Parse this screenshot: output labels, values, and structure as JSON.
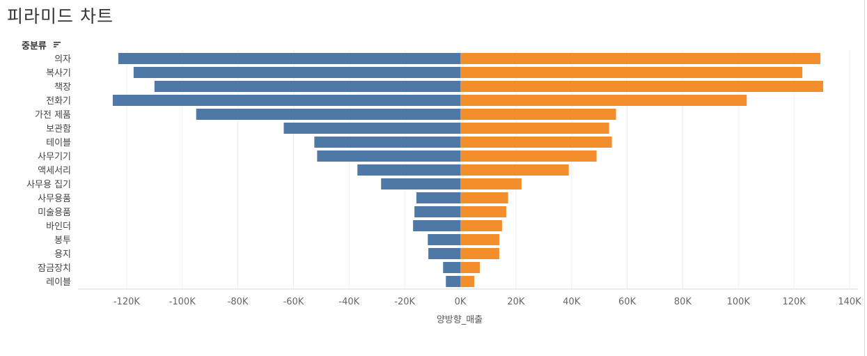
{
  "page_title": "피라미드 차트",
  "dimension_header": "중분류",
  "colors": {
    "left_series": "#4e79a7",
    "right_series": "#f28e2b",
    "gridline": "#efefef",
    "axis_text": "#666666"
  },
  "icons": {
    "sort": "sort-descending-icon"
  },
  "chart_data": {
    "type": "bar",
    "orientation": "horizontal",
    "layout": "pyramid",
    "categories": [
      "의자",
      "복사기",
      "책장",
      "전화기",
      "가전 제품",
      "보관함",
      "테이블",
      "사무기기",
      "액세서리",
      "사무용 집기",
      "사무용품",
      "미술용품",
      "바인더",
      "봉투",
      "용지",
      "잠금장치",
      "레이블"
    ],
    "series": [
      {
        "values": [
          -123000,
          -117500,
          -110000,
          -125000,
          -95000,
          -63500,
          -52500,
          -51500,
          -37000,
          -28500,
          -15800,
          -16500,
          -17000,
          -11700,
          -11500,
          -6200,
          -5200
        ]
      },
      {
        "values": [
          129500,
          123000,
          130500,
          103000,
          56000,
          53500,
          54500,
          49000,
          39000,
          22000,
          17200,
          16500,
          15000,
          14000,
          14000,
          7000,
          5000
        ]
      }
    ],
    "xlabel": "양방향_매출",
    "xlim": [
      -137500,
      143000
    ],
    "xticks": [
      -120000,
      -100000,
      -80000,
      -60000,
      -40000,
      -20000,
      0,
      20000,
      40000,
      60000,
      80000,
      100000,
      120000,
      140000
    ],
    "xtick_labels": [
      "-120K",
      "-100K",
      "-80K",
      "-60K",
      "-40K",
      "-20K",
      "0K",
      "20K",
      "40K",
      "60K",
      "80K",
      "100K",
      "120K",
      "140K"
    ],
    "grid": true,
    "legend": "none"
  }
}
